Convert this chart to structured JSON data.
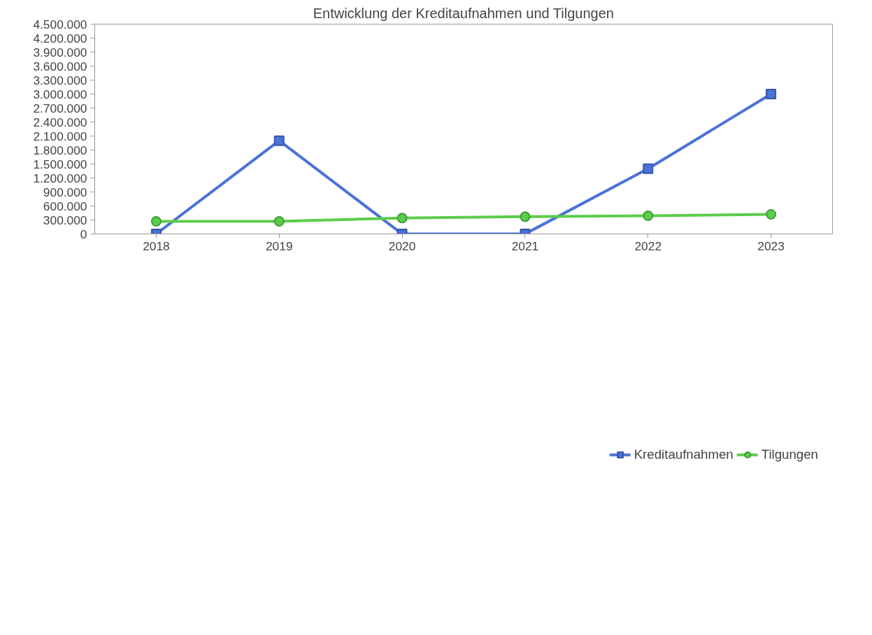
{
  "chart_data": {
    "type": "line",
    "title": "Entwicklung der Kreditaufnahmen und Tilgungen",
    "categories": [
      "2018",
      "2019",
      "2020",
      "2021",
      "2022",
      "2023"
    ],
    "series": [
      {
        "name": "Kreditaufnahmen",
        "color": "#4a72d8",
        "marker": "square",
        "values": [
          0,
          2000000,
          0,
          0,
          1400000,
          3000000
        ]
      },
      {
        "name": "Tilgungen",
        "color": "#5ccc4c",
        "marker": "circle",
        "values": [
          270000,
          270000,
          340000,
          370000,
          390000,
          420000
        ]
      }
    ],
    "ylim": [
      0,
      4500000
    ],
    "yticks": [
      {
        "value": 0,
        "label": "0"
      },
      {
        "value": 300000,
        "label": "300.000"
      },
      {
        "value": 600000,
        "label": "600.000"
      },
      {
        "value": 900000,
        "label": "900.000"
      },
      {
        "value": 1200000,
        "label": "1.200.000"
      },
      {
        "value": 1500000,
        "label": "1.500.000"
      },
      {
        "value": 1800000,
        "label": "1.800.000"
      },
      {
        "value": 2100000,
        "label": "2.100.000"
      },
      {
        "value": 2400000,
        "label": "2.400.000"
      },
      {
        "value": 2700000,
        "label": "2.700.000"
      },
      {
        "value": 3000000,
        "label": "3.000.000"
      },
      {
        "value": 3300000,
        "label": "3.300.000"
      },
      {
        "value": 3600000,
        "label": "3.600.000"
      },
      {
        "value": 3900000,
        "label": "3.900.000"
      },
      {
        "value": 4200000,
        "label": "4.200.000"
      },
      {
        "value": 4500000,
        "label": "4.500.000"
      }
    ],
    "grid": false,
    "legend": "bottom"
  }
}
